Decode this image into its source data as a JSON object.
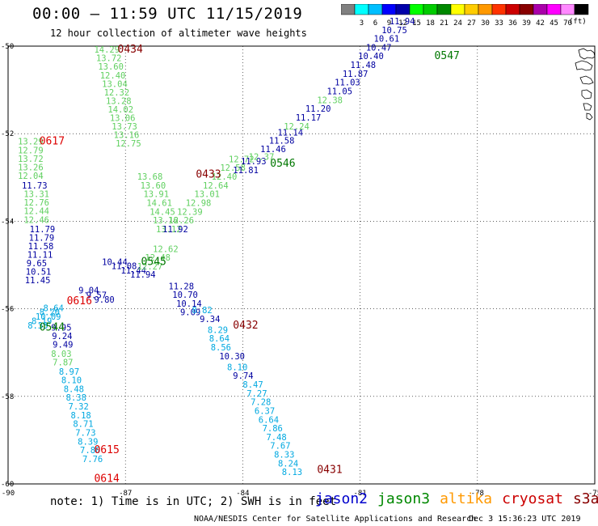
{
  "title": "00:00 – 11:59 UTC 11/15/2019",
  "subtitle": "12 hour collection of altimeter wave heights",
  "colorbar": {
    "colors": [
      "#808080",
      "#00ffff",
      "#00bfff",
      "#0000ff",
      "#0000aa",
      "#00ff00",
      "#00cc00",
      "#008800",
      "#ffff00",
      "#ffcc00",
      "#ff9900",
      "#ff3300",
      "#cc0000",
      "#880000",
      "#aa00aa",
      "#ff00ff",
      "#ff88ff",
      "#000000"
    ],
    "labels": [
      "3",
      "6",
      "9",
      "12",
      "15",
      "18",
      "21",
      "24",
      "27",
      "30",
      "33",
      "36",
      "39",
      "42",
      "45",
      "70"
    ],
    "units": "(ft)"
  },
  "axes": {
    "lon_ticks": [
      "-90",
      "-87",
      "-84",
      "-81",
      "-78",
      "-75"
    ],
    "lat_ticks": [
      "-50",
      "-52",
      "-54",
      "-56",
      "-58",
      "-60"
    ]
  },
  "note": "note: 1) Time is in UTC; 2) SWH is in feet",
  "legend": [
    {
      "name": "jason2",
      "color": "#0000cc"
    },
    {
      "name": "jason3",
      "color": "#008800"
    },
    {
      "name": "altika",
      "color": "#ff9900"
    },
    {
      "name": "cryosat",
      "color": "#cc0000"
    },
    {
      "name": "s3a",
      "color": "#880000"
    }
  ],
  "credit_org": "NOAA/NESDIS Center for Satellite Applications and Research",
  "credit_date": "Dec  3 15:36:23 UTC 2019",
  "colors": {
    "blue": "#0000a0",
    "lightblue": "#00a8e0",
    "green": "#60d060",
    "darkgreen": "#007700",
    "red": "#dd0000",
    "darkred": "#880000"
  },
  "time_labels": [
    {
      "text": "0434",
      "lon": -87.2,
      "lat": -50.15,
      "color": "darkred"
    },
    {
      "text": "0617",
      "lon": -89.2,
      "lat": -52.25,
      "color": "red"
    },
    {
      "text": "0433",
      "lon": -85.2,
      "lat": -53.0,
      "color": "darkred"
    },
    {
      "text": "0546",
      "lon": -83.3,
      "lat": -52.75,
      "color": "darkgreen"
    },
    {
      "text": "0547",
      "lon": -79.1,
      "lat": -50.3,
      "color": "darkgreen"
    },
    {
      "text": "0545",
      "lon": -86.6,
      "lat": -55.0,
      "color": "darkgreen"
    },
    {
      "text": "0616",
      "lon": -88.5,
      "lat": -55.9,
      "color": "red"
    },
    {
      "text": "0544",
      "lon": -89.2,
      "lat": -56.5,
      "color": "darkgreen"
    },
    {
      "text": "0432",
      "lon": -84.25,
      "lat": -56.45,
      "color": "darkred"
    },
    {
      "text": "0615",
      "lon": -87.8,
      "lat": -59.3,
      "color": "red"
    },
    {
      "text": "0614",
      "lon": -87.8,
      "lat": -59.95,
      "color": "red"
    },
    {
      "text": "0431",
      "lon": -82.1,
      "lat": -59.75,
      "color": "darkred"
    }
  ],
  "tracks": [
    {
      "color": "green",
      "start": [
        -87.8,
        -50.15
      ],
      "step": [
        0.05,
        -0.195
      ],
      "values": [
        "14.29",
        "13.72",
        "13.60",
        "12.40",
        "13.04",
        "12.32",
        "13.28",
        "14.02",
        "13.06",
        "13.73",
        "13.16",
        "12.75"
      ]
    },
    {
      "color": "green",
      "start": [
        -86.7,
        -53.05
      ],
      "step": [
        0.08,
        -0.2
      ],
      "values": [
        "13.68",
        "13.60",
        "13.91",
        "14.61",
        "14.45",
        "13.16",
        "13.12"
      ]
    },
    {
      "color": "green",
      "start": [
        -89.75,
        -52.25
      ],
      "step": [
        0.0,
        -0.195
      ],
      "values": [
        "13.29",
        "12.79",
        "13.72",
        "13.26",
        "12.04"
      ]
    },
    {
      "color": "blue",
      "start": [
        -89.65,
        -53.25
      ],
      "step": [
        0.0,
        -0.195
      ],
      "values": [
        "11.73"
      ]
    },
    {
      "color": "green",
      "start": [
        -89.6,
        -53.45
      ],
      "step": [
        0.0,
        -0.195
      ],
      "values": [
        "13.31",
        "12.76",
        "12.44",
        "12.46"
      ]
    },
    {
      "color": "blue",
      "start": [
        -89.45,
        -54.25
      ],
      "step": [
        -0.02,
        -0.195
      ],
      "values": [
        "11.79",
        "11.79",
        "11.58",
        "11.11",
        "9.65",
        "10.51",
        "11.45"
      ]
    },
    {
      "color": "lightblue",
      "start": [
        -89.1,
        -56.05
      ],
      "step": [
        -0.1,
        -0.1
      ],
      "values": [
        "8.64",
        "8.20",
        "10.09",
        "8.19",
        "8.33"
      ]
    },
    {
      "color": "blue",
      "start": [
        -88.9,
        -56.5
      ],
      "step": [
        0.02,
        -0.195
      ],
      "values": [
        "9.95",
        "9.24",
        "9.49"
      ]
    },
    {
      "color": "green",
      "start": [
        -88.9,
        -57.1
      ],
      "step": [
        0.04,
        -0.195
      ],
      "values": [
        "8.03",
        "7.87"
      ]
    },
    {
      "color": "lightblue",
      "start": [
        -88.7,
        -57.5
      ],
      "step": [
        0.06,
        -0.2
      ],
      "values": [
        "8.97",
        "8.10",
        "8.48",
        "8.38",
        "7.32",
        "8.18",
        "8.71",
        "7.73",
        "8.39",
        "7.80",
        "7.76"
      ]
    },
    {
      "color": "blue",
      "start": [
        -88.2,
        -55.65
      ],
      "step": [
        0.2,
        -0.105
      ],
      "values": [
        "9.04",
        "9.57",
        "9.80"
      ]
    },
    {
      "color": "blue",
      "start": [
        -87.6,
        -55.0
      ],
      "step": [
        0.24,
        -0.095
      ],
      "values": [
        "10.44",
        "11.08",
        "11.44",
        "11.94"
      ]
    },
    {
      "color": "green",
      "start": [
        -86.7,
        -55.1
      ],
      "step": [
        0.2,
        0.2
      ],
      "values": [
        "12.27",
        "12.48",
        "12.62"
      ]
    },
    {
      "color": "blue",
      "start": [
        -86.05,
        -54.25
      ],
      "step": [
        0.0,
        0.0
      ],
      "values": [
        "11.92"
      ]
    },
    {
      "color": "green",
      "start": [
        -85.9,
        -54.05
      ],
      "step": [
        0.22,
        0.2
      ],
      "values": [
        "12.26",
        "12.39",
        "12.98",
        "13.01",
        "12.64",
        "12.40",
        "12.58",
        "12.72"
      ]
    },
    {
      "color": "blue",
      "start": [
        -84.25,
        -52.9
      ],
      "step": [
        0.2,
        0.2
      ],
      "values": [
        "11.81",
        "11.93"
      ]
    },
    {
      "color": "green",
      "start": [
        -83.85,
        -52.6
      ],
      "step": [
        0.2,
        0.2
      ],
      "values": [
        "12.37"
      ]
    },
    {
      "color": "blue",
      "start": [
        -83.55,
        -52.42
      ],
      "step": [
        0.22,
        0.19
      ],
      "values": [
        "11.46",
        "11.58",
        "11.14"
      ]
    },
    {
      "color": "green",
      "start": [
        -82.95,
        -51.9
      ],
      "step": [
        0.2,
        0.2
      ],
      "values": [
        "12.24"
      ]
    },
    {
      "color": "blue",
      "start": [
        -82.65,
        -51.7
      ],
      "step": [
        0.25,
        0.2
      ],
      "values": [
        "11.17",
        "11.20"
      ]
    },
    {
      "color": "green",
      "start": [
        -82.1,
        -51.3
      ],
      "step": [
        0.2,
        0.2
      ],
      "values": [
        "12.38"
      ]
    },
    {
      "color": "blue",
      "start": [
        -81.85,
        -51.1
      ],
      "step": [
        0.2,
        0.2
      ],
      "values": [
        "11.05",
        "11.03",
        "11.87",
        "11.48",
        "10.40",
        "10.47",
        "10.61",
        "10.75",
        "11.94"
      ]
    },
    {
      "color": "blue",
      "start": [
        -85.9,
        -55.55
      ],
      "step": [
        0.1,
        -0.2
      ],
      "values": [
        "11.28",
        "10.70",
        "10.14",
        "9.09"
      ]
    },
    {
      "color": "lightblue",
      "start": [
        -85.3,
        -56.1
      ],
      "step": [
        0.0,
        0.0
      ],
      "values": [
        "8.82"
      ]
    },
    {
      "color": "blue",
      "start": [
        -85.1,
        -56.3
      ],
      "step": [
        0.0,
        0.0
      ],
      "values": [
        "9.34"
      ]
    },
    {
      "color": "lightblue",
      "start": [
        -84.9,
        -56.55
      ],
      "step": [
        0.04,
        -0.2
      ],
      "values": [
        "8.29",
        "8.64",
        "8.56"
      ]
    },
    {
      "color": "blue",
      "start": [
        -84.6,
        -57.15
      ],
      "step": [
        0.0,
        0.0
      ],
      "values": [
        "10.30"
      ]
    },
    {
      "color": "lightblue",
      "start": [
        -84.4,
        -57.4
      ],
      "step": [
        0.0,
        0.0
      ],
      "values": [
        "8.10"
      ]
    },
    {
      "color": "blue",
      "start": [
        -84.25,
        -57.6
      ],
      "step": [
        0.0,
        0.0
      ],
      "values": [
        "9.74"
      ]
    },
    {
      "color": "lightblue",
      "start": [
        -84.0,
        -57.8
      ],
      "step": [
        0.1,
        -0.2
      ],
      "values": [
        "8.47",
        "7.27",
        "7.28",
        "6.37",
        "6.64",
        "7.86",
        "7.48",
        "7.67",
        "8.33",
        "8.24",
        "8.13"
      ]
    }
  ]
}
